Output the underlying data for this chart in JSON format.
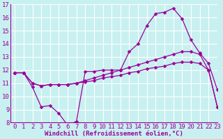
{
  "background_color": "#c8f0f0",
  "grid_color": "#ffffff",
  "line_color": "#990099",
  "title": "Windchill (Refroidissement éolien,°C)",
  "xlim": [
    -0.5,
    23
  ],
  "ylim": [
    8,
    17
  ],
  "xticks": [
    0,
    1,
    2,
    3,
    4,
    5,
    6,
    7,
    8,
    9,
    10,
    11,
    12,
    13,
    14,
    15,
    16,
    17,
    18,
    19,
    20,
    21,
    22,
    23
  ],
  "yticks": [
    8,
    9,
    10,
    11,
    12,
    13,
    14,
    15,
    16,
    17
  ],
  "line1_x": [
    0,
    1,
    2,
    3,
    4,
    5,
    6,
    7,
    8,
    9,
    10,
    11,
    12,
    13,
    14,
    15,
    16,
    17,
    18,
    19,
    20,
    21,
    22,
    23
  ],
  "line1_y": [
    11.8,
    11.8,
    10.7,
    9.2,
    9.3,
    8.7,
    7.8,
    8.1,
    11.9,
    11.9,
    12.0,
    12.0,
    12.0,
    13.4,
    14.0,
    15.4,
    16.3,
    16.4,
    16.7,
    15.9,
    14.3,
    13.3,
    12.5,
    10.5
  ],
  "line2_x": [
    0,
    1,
    2,
    3,
    4,
    5,
    6,
    7,
    8,
    9,
    10,
    11,
    12,
    13,
    14,
    15,
    16,
    17,
    18,
    19,
    20,
    21,
    22,
    23
  ],
  "line2_y": [
    11.8,
    11.8,
    11.0,
    10.8,
    10.9,
    10.9,
    10.9,
    11.0,
    11.1,
    11.2,
    11.4,
    11.5,
    11.6,
    11.8,
    11.9,
    12.1,
    12.2,
    12.3,
    12.5,
    12.6,
    12.6,
    12.5,
    12.0,
    9.2
  ],
  "line3_x": [
    0,
    1,
    2,
    3,
    4,
    5,
    6,
    7,
    8,
    9,
    10,
    11,
    12,
    13,
    14,
    15,
    16,
    17,
    18,
    19,
    20,
    21,
    22,
    23
  ],
  "line3_y": [
    11.8,
    11.8,
    11.0,
    10.8,
    10.9,
    10.9,
    10.9,
    11.0,
    11.2,
    11.4,
    11.6,
    11.8,
    12.0,
    12.2,
    12.4,
    12.6,
    12.8,
    13.0,
    13.2,
    13.4,
    13.4,
    13.2,
    12.0,
    9.2
  ],
  "xlabel_fontsize": 6.5,
  "tick_fontsize": 6.5,
  "marker": "D",
  "markersize": 2.5,
  "linewidth": 0.9
}
